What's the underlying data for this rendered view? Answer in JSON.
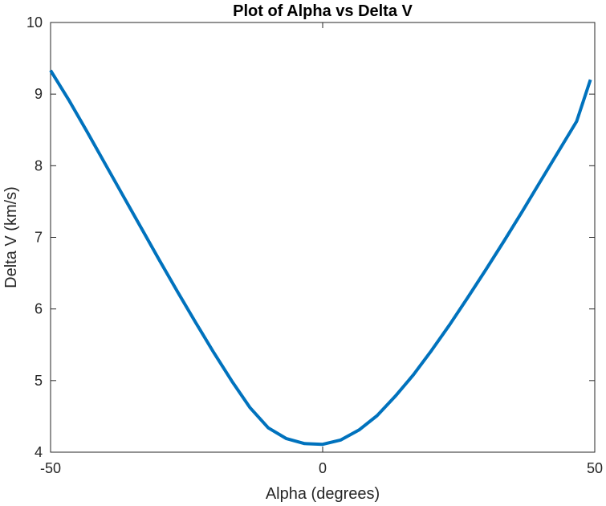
{
  "chart_data": {
    "type": "line",
    "title": "Plot of Alpha vs Delta V",
    "xlabel": "Alpha (degrees)",
    "ylabel": "Delta V (km/s)",
    "xlim": [
      -50,
      50
    ],
    "ylim": [
      4,
      10
    ],
    "xticks": [
      -50,
      0,
      50
    ],
    "xtick_labels": [
      "-50",
      "0",
      "50"
    ],
    "yticks": [
      4,
      5,
      6,
      7,
      8,
      9,
      10
    ],
    "ytick_labels": [
      "4",
      "5",
      "6",
      "7",
      "8",
      "9",
      "10"
    ],
    "grid": false,
    "legend": false,
    "series": [
      {
        "color": "#0072BD",
        "x": [
          -50,
          -46.67,
          -43.33,
          -40,
          -36.67,
          -33.33,
          -30,
          -26.67,
          -23.33,
          -20,
          -16.67,
          -13.33,
          -10,
          -6.67,
          -3.33,
          0,
          3.33,
          6.67,
          10,
          13.33,
          16.67,
          20,
          23.33,
          26.67,
          30,
          33.33,
          36.67,
          40,
          43.33,
          46.67,
          49.2
        ],
        "y": [
          9.33,
          8.92,
          8.48,
          8.03,
          7.58,
          7.13,
          6.68,
          6.24,
          5.81,
          5.39,
          4.99,
          4.62,
          4.34,
          4.19,
          4.12,
          4.11,
          4.17,
          4.31,
          4.51,
          4.78,
          5.08,
          5.42,
          5.78,
          6.16,
          6.55,
          6.95,
          7.36,
          7.78,
          8.2,
          8.62,
          9.2
        ]
      }
    ]
  }
}
